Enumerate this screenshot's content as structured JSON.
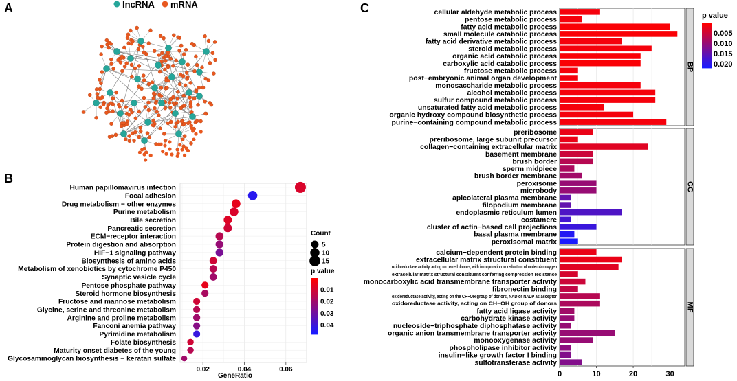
{
  "panels": {
    "a": "A",
    "b": "B",
    "c": "C"
  },
  "colors": {
    "lncrna": "#26a69a",
    "mrna": "#e8581f",
    "edge": "#6b6b6b",
    "p_low": "#ff0000",
    "p_high": "#1a1aff",
    "facet_bg": "#d9d9d9"
  },
  "network": {
    "legend": [
      {
        "label": "lncRNA",
        "color": "#26a69a"
      },
      {
        "label": "mRNA",
        "color": "#e8581f"
      }
    ]
  },
  "chart_data": [
    {
      "id": "kegg-dotplot",
      "type": "scatter",
      "xlabel": "GeneRatio",
      "x_ticks": [
        "0.02",
        "0.04",
        "0.06"
      ],
      "xlim": [
        0.009,
        0.07
      ],
      "pvalue_range": [
        0.0,
        0.048
      ],
      "count_legend": {
        "title": "Count",
        "entries": [
          {
            "label": "5",
            "value": 5
          },
          {
            "label": "10",
            "value": 10
          },
          {
            "label": "15",
            "value": 15
          }
        ]
      },
      "color_legend": {
        "title": "p value",
        "ticks": [
          "0.01",
          "0.02",
          "0.03",
          "0.04"
        ]
      },
      "points": [
        {
          "term": "Human papillomavirus infection",
          "gene_ratio": 0.067,
          "count": 16,
          "pvalue": 0.008
        },
        {
          "term": "Focal adhesion",
          "gene_ratio": 0.044,
          "count": 10,
          "pvalue": 0.045
        },
        {
          "term": "Drug metabolism − other enzymes",
          "gene_ratio": 0.036,
          "count": 8,
          "pvalue": 0.005
        },
        {
          "term": "Purine metabolism",
          "gene_ratio": 0.035,
          "count": 8,
          "pvalue": 0.008
        },
        {
          "term": "Bile secretion",
          "gene_ratio": 0.032,
          "count": 7,
          "pvalue": 0.007
        },
        {
          "term": "Pancreatic secretion",
          "gene_ratio": 0.032,
          "count": 7,
          "pvalue": 0.01
        },
        {
          "term": "ECM−receptor interaction",
          "gene_ratio": 0.028,
          "count": 6,
          "pvalue": 0.015
        },
        {
          "term": "Protein digestion and absorption",
          "gene_ratio": 0.028,
          "count": 6,
          "pvalue": 0.022
        },
        {
          "term": "HIF−1 signaling pathway",
          "gene_ratio": 0.028,
          "count": 6,
          "pvalue": 0.028
        },
        {
          "term": "Biosynthesis of amino acids",
          "gene_ratio": 0.025,
          "count": 5,
          "pvalue": 0.01
        },
        {
          "term": "Metabolism of xenobiotics by cytochrome P450",
          "gene_ratio": 0.025,
          "count": 5,
          "pvalue": 0.015
        },
        {
          "term": "Synaptic vesicle cycle",
          "gene_ratio": 0.025,
          "count": 5,
          "pvalue": 0.02
        },
        {
          "term": "Pentose phosphate pathway",
          "gene_ratio": 0.021,
          "count": 4,
          "pvalue": 0.005
        },
        {
          "term": "Steroid hormone biosynthesis",
          "gene_ratio": 0.021,
          "count": 4,
          "pvalue": 0.018
        },
        {
          "term": "Fructose and mannose metabolism",
          "gene_ratio": 0.017,
          "count": 4,
          "pvalue": 0.01
        },
        {
          "term": "Glycine, serine and threonine metabolism",
          "gene_ratio": 0.017,
          "count": 4,
          "pvalue": 0.015
        },
        {
          "term": "Arginine and proline metabolism",
          "gene_ratio": 0.017,
          "count": 4,
          "pvalue": 0.02
        },
        {
          "term": "Fanconi anemia pathway",
          "gene_ratio": 0.017,
          "count": 4,
          "pvalue": 0.025
        },
        {
          "term": "Pyrimidine metabolism",
          "gene_ratio": 0.017,
          "count": 4,
          "pvalue": 0.042
        },
        {
          "term": "Folate biosynthesis",
          "gene_ratio": 0.014,
          "count": 3,
          "pvalue": 0.01
        },
        {
          "term": "Maturity onset diabetes of the young",
          "gene_ratio": 0.014,
          "count": 3,
          "pvalue": 0.015
        },
        {
          "term": "Glycosaminoglycan biosynthesis − keratan sulfate",
          "gene_ratio": 0.011,
          "count": 2,
          "pvalue": 0.02
        }
      ]
    },
    {
      "id": "go-barplot",
      "type": "bar",
      "orientation": "horizontal",
      "xlim": [
        0,
        34
      ],
      "x_ticks": [
        "0",
        "10",
        "20",
        "30"
      ],
      "pvalue_range": [
        0.0,
        0.022
      ],
      "color_legend": {
        "title": "p value",
        "ticks": [
          "0.005",
          "0.010",
          "0.015",
          "0.020"
        ]
      },
      "facets": [
        {
          "name": "BP",
          "bars": [
            {
              "term": "cellular aldehyde metabolic process",
              "count": 11,
              "pvalue": 0.001
            },
            {
              "term": "pentose metabolic process",
              "count": 6,
              "pvalue": 0.001
            },
            {
              "term": "fatty acid metabolic process",
              "count": 30,
              "pvalue": 0.0005
            },
            {
              "term": "small molecule catabolic process",
              "count": 32,
              "pvalue": 0.0005
            },
            {
              "term": "fatty acid derivative metabolic process",
              "count": 17,
              "pvalue": 0.001
            },
            {
              "term": "steroid metabolic process",
              "count": 25,
              "pvalue": 0.001
            },
            {
              "term": "organic acid catabolic process",
              "count": 22,
              "pvalue": 0.0005
            },
            {
              "term": "carboxylic acid catabolic process",
              "count": 22,
              "pvalue": 0.0005
            },
            {
              "term": "fructose metabolic process",
              "count": 5,
              "pvalue": 0.001
            },
            {
              "term": "post−embryonic animal organ development",
              "count": 5,
              "pvalue": 0.001
            },
            {
              "term": "monosaccharide metabolic process",
              "count": 22,
              "pvalue": 0.001
            },
            {
              "term": "alcohol metabolic process",
              "count": 26,
              "pvalue": 0.001
            },
            {
              "term": "sulfur compound metabolic process",
              "count": 26,
              "pvalue": 0.001
            },
            {
              "term": "unsaturated fatty acid metabolic process",
              "count": 12,
              "pvalue": 0.001
            },
            {
              "term": "organic hydroxy compound biosynthetic process",
              "count": 20,
              "pvalue": 0.001
            },
            {
              "term": "purine−containing compound metabolic process",
              "count": 29,
              "pvalue": 0.001
            }
          ]
        },
        {
          "name": "CC",
          "bars": [
            {
              "term": "preribosome",
              "count": 9,
              "pvalue": 0.002
            },
            {
              "term": "preribosome, large subunit precursor",
              "count": 5,
              "pvalue": 0.002
            },
            {
              "term": "collagen−containing extracellular matrix",
              "count": 24,
              "pvalue": 0.003
            },
            {
              "term": "basement membrane",
              "count": 9,
              "pvalue": 0.005
            },
            {
              "term": "brush border",
              "count": 9,
              "pvalue": 0.007
            },
            {
              "term": "sperm midpiece",
              "count": 4,
              "pvalue": 0.008
            },
            {
              "term": "brush border membrane",
              "count": 6,
              "pvalue": 0.009
            },
            {
              "term": "peroxisome",
              "count": 10,
              "pvalue": 0.01
            },
            {
              "term": "microbody",
              "count": 10,
              "pvalue": 0.01
            },
            {
              "term": "apicolateral plasma membrane",
              "count": 3,
              "pvalue": 0.015
            },
            {
              "term": "filopodium membrane",
              "count": 3,
              "pvalue": 0.015
            },
            {
              "term": "endoplasmic reticulum lumen",
              "count": 17,
              "pvalue": 0.017
            },
            {
              "term": "costamere",
              "count": 3,
              "pvalue": 0.018
            },
            {
              "term": "cluster of actin−based cell projections",
              "count": 10,
              "pvalue": 0.019
            },
            {
              "term": "basal plasma membrane",
              "count": 4,
              "pvalue": 0.021
            },
            {
              "term": "peroxisomal matrix",
              "count": 5,
              "pvalue": 0.022
            }
          ]
        },
        {
          "name": "MF",
          "bars": [
            {
              "term": "calcium−dependent protein binding",
              "count": 10,
              "pvalue": 0.002
            },
            {
              "term": "extracellular matrix structural constituent",
              "count": 17,
              "pvalue": 0.002
            },
            {
              "term": "oxidoreductase activity, acting on paired donors, with incorporation or reduction of molecular oxygen",
              "count": 16,
              "pvalue": 0.003,
              "small": true
            },
            {
              "term": "extracellular matrix structural constituent conferring compression resistance",
              "count": 5,
              "pvalue": 0.004,
              "small": true
            },
            {
              "term": "monocarboxylic acid transmembrane transporter activity",
              "count": 7,
              "pvalue": 0.005
            },
            {
              "term": "fibronectin binding",
              "count": 5,
              "pvalue": 0.006
            },
            {
              "term": "oxidoreductase activity, acting on the CH−OH group of donors, NAD or NADP as acceptor",
              "count": 11,
              "pvalue": 0.007,
              "small": true
            },
            {
              "term": "oxidoreductase activity, acting on CH−OH group of donors",
              "count": 11,
              "pvalue": 0.008,
              "small": true
            },
            {
              "term": "fatty acid ligase activity",
              "count": 4,
              "pvalue": 0.009
            },
            {
              "term": "carbohydrate kinase activity",
              "count": 4,
              "pvalue": 0.01
            },
            {
              "term": "nucleoside−triphosphate diphosphatase activity",
              "count": 3,
              "pvalue": 0.01
            },
            {
              "term": "organic anion transmembrane transporter activity",
              "count": 15,
              "pvalue": 0.01
            },
            {
              "term": "monooxygenase activity",
              "count": 9,
              "pvalue": 0.01
            },
            {
              "term": "phospholipase inhibitor activity",
              "count": 3,
              "pvalue": 0.011
            },
            {
              "term": "insulin−like growth factor I binding",
              "count": 3,
              "pvalue": 0.012
            },
            {
              "term": "sulfotransferase activity",
              "count": 6,
              "pvalue": 0.012
            }
          ]
        }
      ]
    }
  ]
}
